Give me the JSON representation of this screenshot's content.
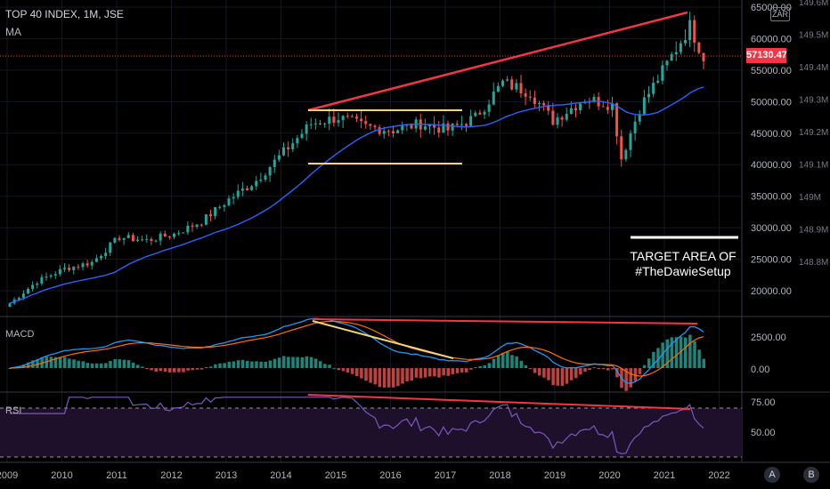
{
  "header": {
    "title": "TOP 40 INDEX, 1M, JSE",
    "indicator": "MA"
  },
  "panes": {
    "macd_label": "MACD",
    "rsi_label": "RSI"
  },
  "currency": "ZAR",
  "last_price": "57130.47",
  "annotation": {
    "line1": "TARGET AREA OF",
    "line2": "#TheDawieSetup"
  },
  "buttons": {
    "a": "A",
    "b": "B"
  },
  "colors": {
    "up": "#26a69a",
    "down": "#ef5350",
    "ma": "#2962ff",
    "trend": "#f23645",
    "channel": "#f5d57a",
    "rsi": "#7e57c2"
  },
  "chart_data": {
    "type": "candlestick",
    "x_ticks": [
      "2009",
      "2010",
      "2011",
      "2012",
      "2013",
      "2014",
      "2015",
      "2016",
      "2017",
      "2018",
      "2019",
      "2020",
      "2021",
      "2022"
    ],
    "price_axis": {
      "ticks": [
        "65000.00",
        "60000.00",
        "55000.00",
        "50000.00",
        "45000.00",
        "40000.00",
        "35000.00",
        "30000.00",
        "25000.00",
        "20000.00"
      ],
      "range": [
        16000,
        66000
      ]
    },
    "volume_axis": {
      "ticks": [
        "149.6M",
        "149.5M",
        "149.4M",
        "149.3M",
        "149.2M",
        "149.1M",
        "149M",
        "148.9M",
        "148.8M"
      ]
    },
    "close_series": [
      {
        "date": "2009-01",
        "close": 18000
      },
      {
        "date": "2009-07",
        "close": 21500
      },
      {
        "date": "2010-01",
        "close": 23500
      },
      {
        "date": "2010-07",
        "close": 24500
      },
      {
        "date": "2011-01",
        "close": 28500
      },
      {
        "date": "2011-07",
        "close": 28000
      },
      {
        "date": "2012-01",
        "close": 29000
      },
      {
        "date": "2012-07",
        "close": 31000
      },
      {
        "date": "2013-01",
        "close": 34500
      },
      {
        "date": "2013-07",
        "close": 37500
      },
      {
        "date": "2014-01",
        "close": 42000
      },
      {
        "date": "2014-07",
        "close": 46500
      },
      {
        "date": "2015-01",
        "close": 47500
      },
      {
        "date": "2015-07",
        "close": 46000
      },
      {
        "date": "2016-01",
        "close": 45500
      },
      {
        "date": "2016-07",
        "close": 46500
      },
      {
        "date": "2017-01",
        "close": 45500
      },
      {
        "date": "2017-07",
        "close": 47500
      },
      {
        "date": "2018-01",
        "close": 53000
      },
      {
        "date": "2018-07",
        "close": 51500
      },
      {
        "date": "2018-12",
        "close": 47000
      },
      {
        "date": "2019-07",
        "close": 50500
      },
      {
        "date": "2020-01",
        "close": 49500
      },
      {
        "date": "2020-03",
        "close": 41000
      },
      {
        "date": "2020-07",
        "close": 49000
      },
      {
        "date": "2021-01",
        "close": 56000
      },
      {
        "date": "2021-06",
        "close": 62000
      },
      {
        "date": "2021-09",
        "close": 57130
      }
    ],
    "macd": {
      "ticks": [
        "2500.00",
        "0.00"
      ]
    },
    "rsi": {
      "ticks": [
        "75.00",
        "50.00"
      ]
    }
  }
}
